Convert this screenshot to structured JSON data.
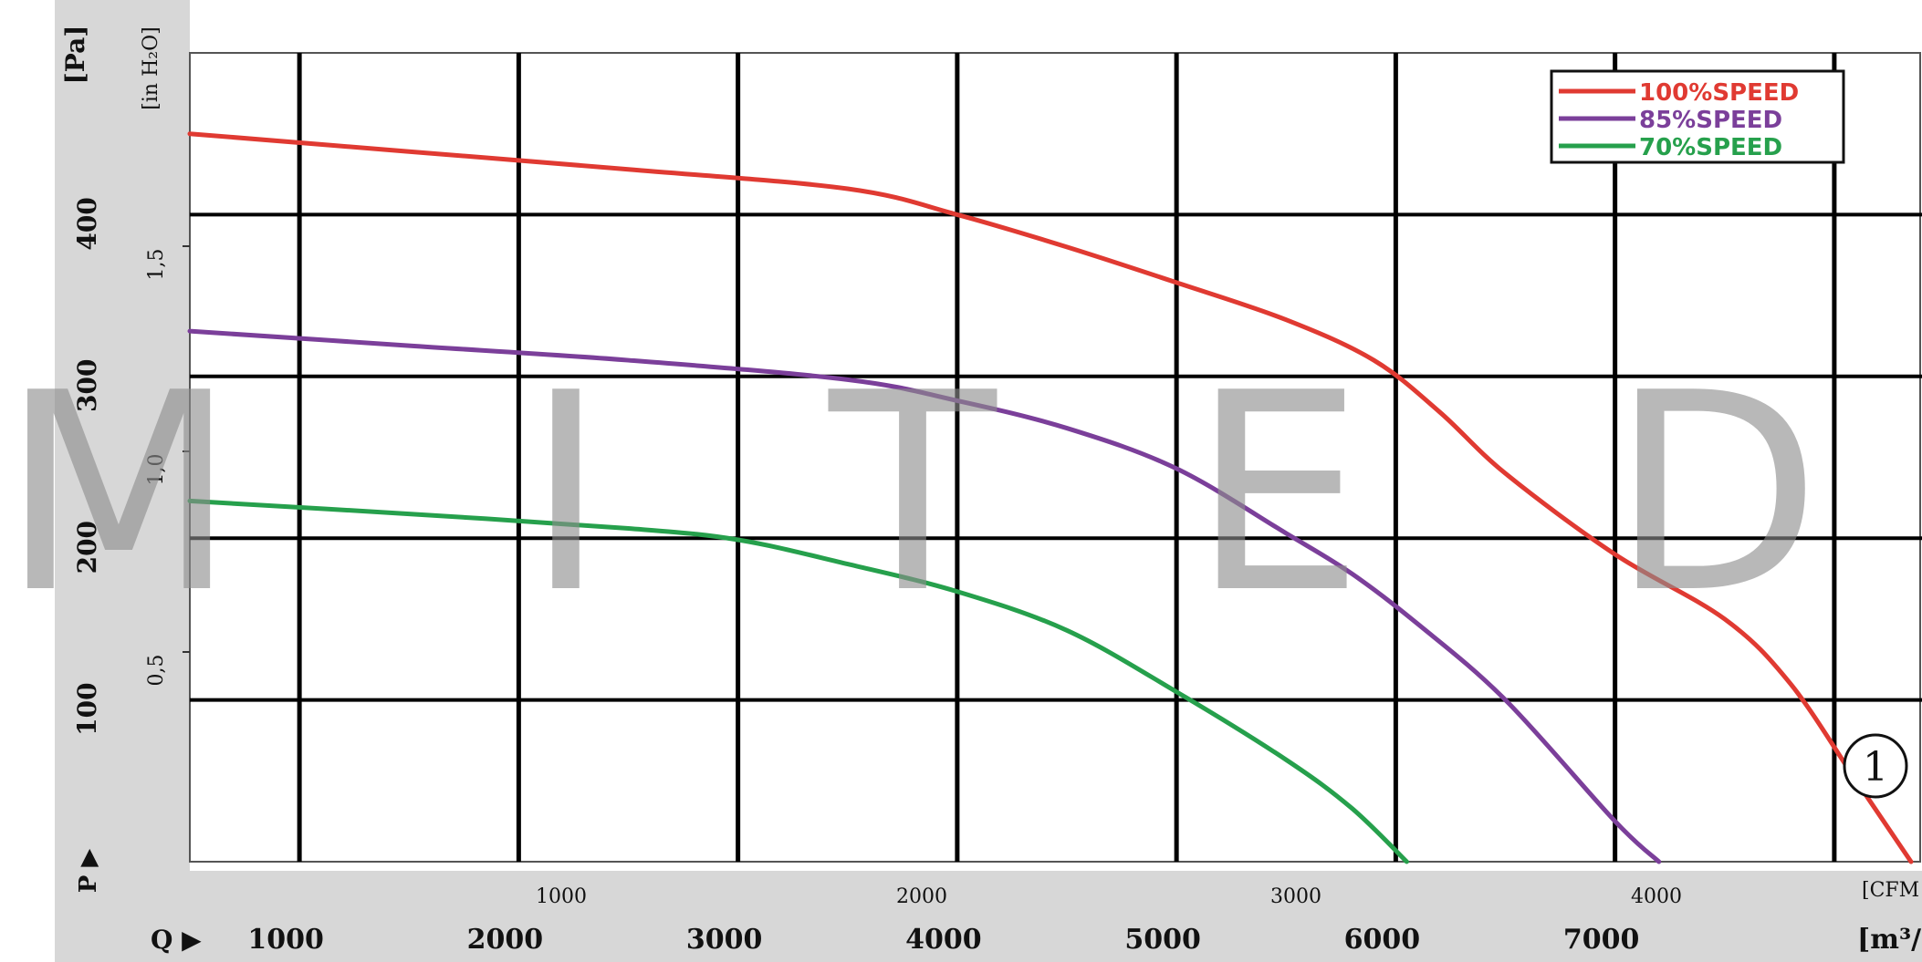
{
  "chart_data": {
    "type": "line",
    "title": "",
    "watermark": [
      "M",
      "I",
      "T",
      "E",
      "D"
    ],
    "badge": "①",
    "x_primary": {
      "unit_label": "[m³/",
      "axis_symbol": "Q ▶",
      "ticks": [
        1000,
        2000,
        3000,
        4000,
        5000,
        6000,
        7000
      ],
      "range": [
        0,
        7900
      ]
    },
    "x_secondary": {
      "unit_label": "[CFM",
      "ticks": [
        1000,
        2000,
        3000,
        4000
      ]
    },
    "y_primary": {
      "unit_label": "[Pa]",
      "axis_symbol": "P ▶",
      "ticks": [
        100,
        200,
        300,
        400
      ],
      "range": [
        0,
        500
      ]
    },
    "y_secondary": {
      "unit_label": "[in H₂O]",
      "ticks": [
        "0,5",
        "1,0",
        "1,5"
      ],
      "tick_values": [
        0.5,
        1.0,
        1.5
      ]
    },
    "legend": {
      "position": "top-right",
      "items": [
        "100%SPEED",
        "85%SPEED",
        "70%SPEED"
      ]
    },
    "series": [
      {
        "name": "100%SPEED",
        "color": "#e03a32",
        "points": [
          [
            0,
            450
          ],
          [
            1000,
            439
          ],
          [
            2000,
            428
          ],
          [
            3000,
            416
          ],
          [
            3500,
            400
          ],
          [
            4000,
            380
          ],
          [
            4500,
            358
          ],
          [
            5000,
            335
          ],
          [
            5400,
            310
          ],
          [
            5700,
            278
          ],
          [
            6000,
            240
          ],
          [
            6500,
            190
          ],
          [
            7000,
            150
          ],
          [
            7300,
            110
          ],
          [
            7600,
            50
          ],
          [
            7850,
            0
          ]
        ]
      },
      {
        "name": "85%SPEED",
        "color": "#7b3f9a",
        "points": [
          [
            0,
            328
          ],
          [
            1000,
            319
          ],
          [
            2000,
            310
          ],
          [
            3000,
            298
          ],
          [
            3500,
            285
          ],
          [
            4000,
            268
          ],
          [
            4500,
            243
          ],
          [
            5000,
            203
          ],
          [
            5300,
            178
          ],
          [
            5600,
            147
          ],
          [
            6000,
            100
          ],
          [
            6500,
            25
          ],
          [
            6700,
            0
          ]
        ]
      },
      {
        "name": "70%SPEED",
        "color": "#26a04c",
        "points": [
          [
            0,
            223
          ],
          [
            1000,
            215
          ],
          [
            2000,
            206
          ],
          [
            2500,
            199
          ],
          [
            3000,
            184
          ],
          [
            3500,
            167
          ],
          [
            4000,
            143
          ],
          [
            4500,
            105
          ],
          [
            5000,
            63
          ],
          [
            5300,
            33
          ],
          [
            5550,
            0
          ]
        ]
      }
    ],
    "grid": true
  }
}
